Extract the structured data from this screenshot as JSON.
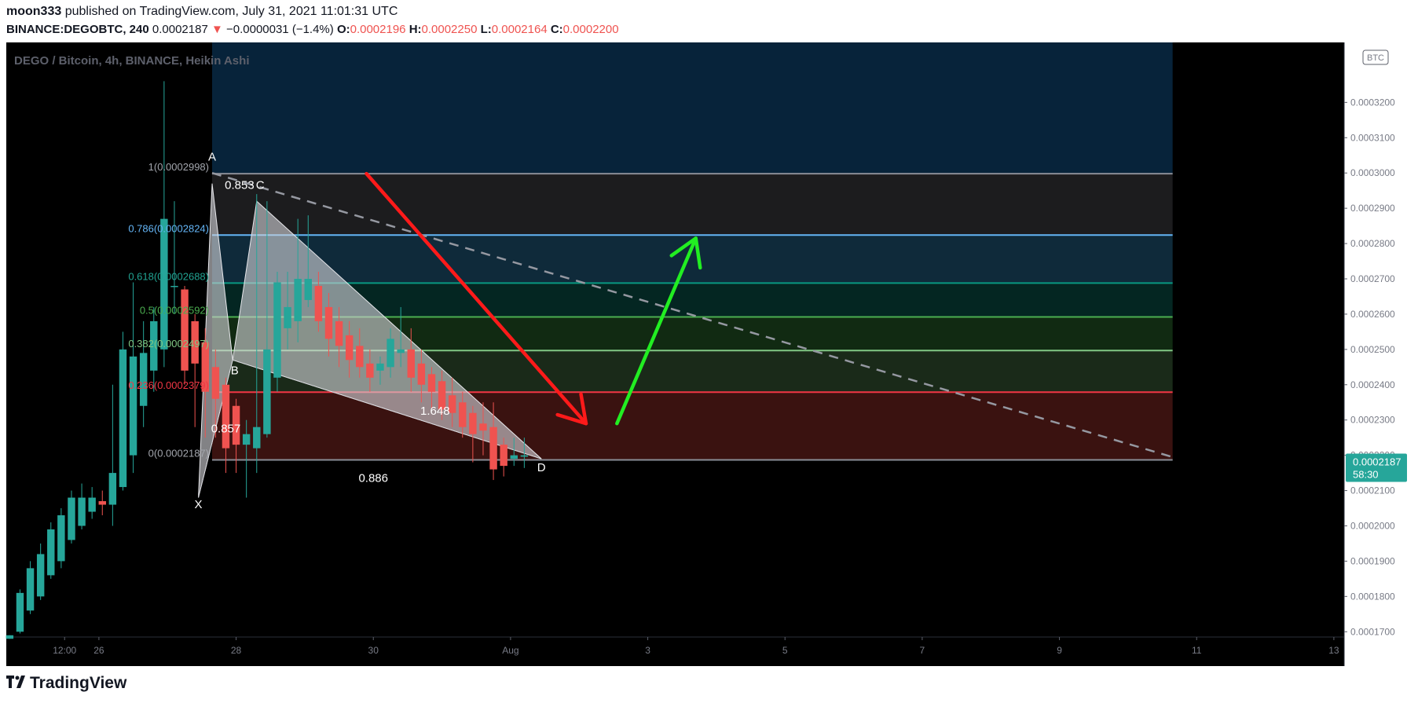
{
  "header": {
    "author": "moon333",
    "published": "published on TradingView.com, July 31, 2021 11:01:31 UTC",
    "symbol": "BINANCE:DEGOBTC, 240",
    "last": "0.0002187",
    "change_arrow": "▼",
    "change": "−0.0000031 (−1.4%)",
    "open_label": "O:",
    "open": "0.0002196",
    "high_label": "H:",
    "high": "0.0002250",
    "low_label": "L:",
    "low": "0.0002164",
    "close_label": "C:",
    "close": "0.0002200"
  },
  "footer": {
    "logo_text": "TradingView",
    "logo_icon": "tradingview-logo-icon"
  },
  "colors": {
    "background": "#000000",
    "bull": "#26a69a",
    "bear": "#ef5350",
    "price_tag": "#26a69a",
    "top_zone": "#07233a",
    "down_arrow": "#ff1a1a",
    "up_arrow": "#22ee22"
  },
  "chart_data": {
    "type": "candlestick",
    "title": "DEGO / Bitcoin, 4h, BINANCE, Heikin Ashi",
    "currency_badge": "BTC",
    "x_ticks": [
      {
        "label": "12:00",
        "t": 0.5
      },
      {
        "label": "26",
        "t": 1
      },
      {
        "label": "28",
        "t": 3
      },
      {
        "label": "30",
        "t": 5
      },
      {
        "label": "Aug",
        "t": 7
      },
      {
        "label": "3",
        "t": 9
      },
      {
        "label": "5",
        "t": 11
      },
      {
        "label": "7",
        "t": 13
      },
      {
        "label": "9",
        "t": 15
      },
      {
        "label": "11",
        "t": 17
      },
      {
        "label": "13",
        "t": 19
      }
    ],
    "x_range": [
      -0.35,
      19.15
    ],
    "y_range": [
      0.0001685,
      0.000337
    ],
    "y_ticks": [
      "0.0003200",
      "0.0003100",
      "0.0003000",
      "0.0002900",
      "0.0002800",
      "0.0002700",
      "0.0002600",
      "0.0002500",
      "0.0002400",
      "0.0002300",
      "0.0002200",
      "0.0002100",
      "0.0002000",
      "0.0001900",
      "0.0001800",
      "0.0001700"
    ],
    "current_price": {
      "price": "0.0002187",
      "countdown": "58:30"
    },
    "candles": [
      {
        "t": -0.3,
        "o": 0.000168,
        "h": 0.000169,
        "l": 0.000168,
        "c": 0.000169
      },
      {
        "t": -0.15,
        "o": 0.00017,
        "h": 0.000182,
        "l": 0.0001695,
        "c": 0.000181
      },
      {
        "t": 0.0,
        "o": 0.000176,
        "h": 0.00019,
        "l": 0.000175,
        "c": 0.000188
      },
      {
        "t": 0.15,
        "o": 0.00018,
        "h": 0.000195,
        "l": 0.000179,
        "c": 0.000192
      },
      {
        "t": 0.3,
        "o": 0.000186,
        "h": 0.000201,
        "l": 0.000185,
        "c": 0.000199
      },
      {
        "t": 0.45,
        "o": 0.00019,
        "h": 0.000205,
        "l": 0.000188,
        "c": 0.000203
      },
      {
        "t": 0.6,
        "o": 0.000196,
        "h": 0.00021,
        "l": 0.000195,
        "c": 0.000208
      },
      {
        "t": 0.75,
        "o": 0.0002,
        "h": 0.000212,
        "l": 0.000199,
        "c": 0.000208
      },
      {
        "t": 0.9,
        "o": 0.000204,
        "h": 0.000211,
        "l": 0.000202,
        "c": 0.000208
      },
      {
        "t": 1.05,
        "o": 0.000207,
        "h": 0.00021,
        "l": 0.000203,
        "c": 0.000206
      },
      {
        "t": 1.2,
        "o": 0.000206,
        "h": 0.00024,
        "l": 0.0002,
        "c": 0.000215
      },
      {
        "t": 1.35,
        "o": 0.000211,
        "h": 0.000255,
        "l": 0.00021,
        "c": 0.00025
      },
      {
        "t": 1.5,
        "o": 0.00022,
        "h": 0.000269,
        "l": 0.000215,
        "c": 0.000248
      },
      {
        "t": 1.65,
        "o": 0.000234,
        "h": 0.000258,
        "l": 0.000228,
        "c": 0.000249
      },
      {
        "t": 1.8,
        "o": 0.000244,
        "h": 0.000262,
        "l": 0.000238,
        "c": 0.000258
      },
      {
        "t": 1.95,
        "o": 0.00025,
        "h": 0.000326,
        "l": 0.000245,
        "c": 0.000287
      },
      {
        "t": 2.1,
        "o": 0.000268,
        "h": 0.000292,
        "l": 0.00026,
        "c": 0.000268
      },
      {
        "t": 2.25,
        "o": 0.000267,
        "h": 0.000268,
        "l": 0.00024,
        "c": 0.000244
      },
      {
        "t": 2.4,
        "o": 0.000258,
        "h": 0.00026,
        "l": 0.000228,
        "c": 0.000246
      },
      {
        "t": 2.55,
        "o": 0.000252,
        "h": 0.000256,
        "l": 0.000225,
        "c": 0.000238
      },
      {
        "t": 2.7,
        "o": 0.000245,
        "h": 0.00025,
        "l": 0.000225,
        "c": 0.000236
      },
      {
        "t": 2.85,
        "o": 0.00024,
        "h": 0.000242,
        "l": 0.000215,
        "c": 0.000222
      },
      {
        "t": 3.0,
        "o": 0.000234,
        "h": 0.000236,
        "l": 0.000215,
        "c": 0.000223
      },
      {
        "t": 3.15,
        "o": 0.000223,
        "h": 0.00023,
        "l": 0.000208,
        "c": 0.000226
      },
      {
        "t": 3.3,
        "o": 0.000222,
        "h": 0.000294,
        "l": 0.000215,
        "c": 0.000228
      },
      {
        "t": 3.45,
        "o": 0.000226,
        "h": 0.000292,
        "l": 0.000225,
        "c": 0.00025
      },
      {
        "t": 3.6,
        "o": 0.000242,
        "h": 0.000272,
        "l": 0.000238,
        "c": 0.000269
      },
      {
        "t": 3.75,
        "o": 0.000256,
        "h": 0.000272,
        "l": 0.00025,
        "c": 0.000262
      },
      {
        "t": 3.9,
        "o": 0.000258,
        "h": 0.000287,
        "l": 0.000252,
        "c": 0.00027
      },
      {
        "t": 4.05,
        "o": 0.000264,
        "h": 0.000288,
        "l": 0.000262,
        "c": 0.00027
      },
      {
        "t": 4.2,
        "o": 0.000268,
        "h": 0.000272,
        "l": 0.000255,
        "c": 0.000258
      },
      {
        "t": 4.35,
        "o": 0.000262,
        "h": 0.000266,
        "l": 0.000248,
        "c": 0.000253
      },
      {
        "t": 4.5,
        "o": 0.000258,
        "h": 0.000262,
        "l": 0.000245,
        "c": 0.000251
      },
      {
        "t": 4.65,
        "o": 0.000254,
        "h": 0.000258,
        "l": 0.000242,
        "c": 0.000247
      },
      {
        "t": 4.8,
        "o": 0.000251,
        "h": 0.000256,
        "l": 0.000242,
        "c": 0.000245
      },
      {
        "t": 4.95,
        "o": 0.000246,
        "h": 0.00025,
        "l": 0.000238,
        "c": 0.000242
      },
      {
        "t": 5.1,
        "o": 0.000244,
        "h": 0.000248,
        "l": 0.00024,
        "c": 0.000246
      },
      {
        "t": 5.25,
        "o": 0.000245,
        "h": 0.000256,
        "l": 0.000242,
        "c": 0.000253
      },
      {
        "t": 5.4,
        "o": 0.000249,
        "h": 0.000262,
        "l": 0.000245,
        "c": 0.00025
      },
      {
        "t": 5.55,
        "o": 0.00025,
        "h": 0.000256,
        "l": 0.000238,
        "c": 0.000242
      },
      {
        "t": 5.7,
        "o": 0.000246,
        "h": 0.00025,
        "l": 0.000235,
        "c": 0.00024
      },
      {
        "t": 5.85,
        "o": 0.000243,
        "h": 0.000245,
        "l": 0.000233,
        "c": 0.000238
      },
      {
        "t": 6.0,
        "o": 0.000241,
        "h": 0.000244,
        "l": 0.00023,
        "c": 0.000233
      },
      {
        "t": 6.15,
        "o": 0.000237,
        "h": 0.000242,
        "l": 0.000228,
        "c": 0.000232
      },
      {
        "t": 6.3,
        "o": 0.000235,
        "h": 0.000238,
        "l": 0.000225,
        "c": 0.000228
      },
      {
        "t": 6.45,
        "o": 0.000232,
        "h": 0.000234,
        "l": 0.000218,
        "c": 0.000226
      },
      {
        "t": 6.6,
        "o": 0.000229,
        "h": 0.000235,
        "l": 0.00022,
        "c": 0.000227
      },
      {
        "t": 6.75,
        "o": 0.000228,
        "h": 0.000235,
        "l": 0.000213,
        "c": 0.000216
      },
      {
        "t": 6.9,
        "o": 0.000223,
        "h": 0.000225,
        "l": 0.000214,
        "c": 0.000217
      },
      {
        "t": 7.05,
        "o": 0.000219,
        "h": 0.000225,
        "l": 0.000217,
        "c": 0.00022
      },
      {
        "t": 7.2,
        "o": 0.0002196,
        "h": 0.000225,
        "l": 0.0002164,
        "c": 0.00022
      }
    ],
    "fib_levels": [
      {
        "label": "1(0.0002998)",
        "price": 0.0002998,
        "color": "#8a8d96",
        "label_color": "#a3a6ad",
        "zone": "#1c1c1e"
      },
      {
        "label": "0.786(0.0002824)",
        "price": 0.0002824,
        "color": "#64b5f6",
        "label_color": "#64b5f6",
        "zone": "#0f2a3a"
      },
      {
        "label": "0.618(0.0002688)",
        "price": 0.0002688,
        "color": "#089981",
        "label_color": "#21a392",
        "zone": "#042622"
      },
      {
        "label": "0.5(0.0002592)",
        "price": 0.0002592,
        "color": "#4caf50",
        "label_color": "#4caf50",
        "zone": "#112a12"
      },
      {
        "label": "0.382(0.0002497)",
        "price": 0.0002497,
        "color": "#81c784",
        "label_color": "#81c784",
        "zone": "#1a2a19"
      },
      {
        "label": "0.236(0.0002379)",
        "price": 0.0002379,
        "color": "#f23645",
        "label_color": "#f23645",
        "zone": "#3a1210"
      },
      {
        "label": "0(0.0002187)",
        "price": 0.0002187,
        "color": "#8a8d96",
        "label_color": "#a3a6ad",
        "zone": null
      }
    ],
    "fib_t_range": [
      2.65,
      16.65
    ],
    "top_zone": {
      "t0": 2.65,
      "t1": 16.65,
      "p_top": 0.000337,
      "p_bottom": 0.0002998
    },
    "pattern": {
      "points": {
        "X": {
          "t": 2.45,
          "p": 0.000208
        },
        "A": {
          "t": 2.65,
          "p": 0.000297
        },
        "B": {
          "t": 2.95,
          "p": 0.000247
        },
        "C": {
          "t": 3.3,
          "p": 0.000292
        },
        "D": {
          "t": 7.45,
          "p": 0.000219
        }
      },
      "labels": [
        {
          "text": "X",
          "t": 2.45,
          "p": 0.000205
        },
        {
          "text": "A",
          "t": 2.65,
          "p": 0.0003035
        },
        {
          "text": "B",
          "t": 2.98,
          "p": 0.000243
        },
        {
          "text": "C",
          "t": 3.35,
          "p": 0.0002955
        },
        {
          "text": "D",
          "t": 7.45,
          "p": 0.0002155
        }
      ],
      "ratio_labels": [
        {
          "text": "0.853",
          "t": 3.05,
          "p": 0.0002955
        },
        {
          "text": "0.857",
          "t": 2.85,
          "p": 0.0002265
        },
        {
          "text": "1.648",
          "t": 5.9,
          "p": 0.0002315
        },
        {
          "text": "0.886",
          "t": 5.0,
          "p": 0.0002125
        }
      ]
    },
    "dashed_line": {
      "t0": 2.65,
      "p0": 0.0003,
      "t1": 16.65,
      "p1": 0.0002195
    },
    "down_arrow": {
      "t0": 4.9,
      "p0": 0.0002998,
      "t1": 8.1,
      "p1": 0.000229
    },
    "up_arrow": {
      "t0": 8.55,
      "p0": 0.000229,
      "t1": 9.7,
      "p1": 0.0002815
    }
  }
}
